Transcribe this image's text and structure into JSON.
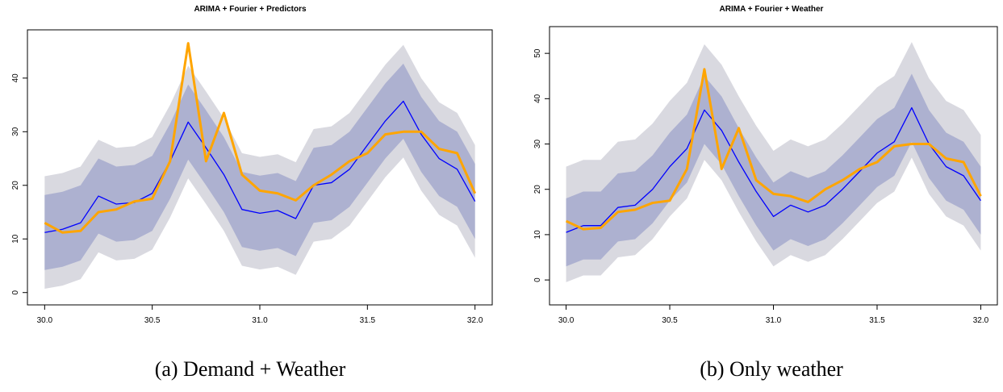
{
  "chart_data": [
    {
      "type": "line",
      "title": "ARIMA + Fourier + Predictors",
      "caption": "(a) Demand + Weather",
      "x": [
        30,
        30.083,
        30.167,
        30.25,
        30.333,
        30.417,
        30.5,
        30.583,
        30.667,
        30.75,
        30.833,
        30.917,
        31,
        31.083,
        31.167,
        31.25,
        31.333,
        31.417,
        31.5,
        31.583,
        31.667,
        31.75,
        31.833,
        31.917,
        32
      ],
      "xlim": [
        29.92,
        32.08
      ],
      "xticks": [
        {
          "value": 30,
          "label": "30.0"
        },
        30.5,
        {
          "value": 31,
          "label": "31.0"
        },
        31.5,
        {
          "value": 32,
          "label": "32.0"
        }
      ],
      "ylim": [
        -2.3,
        49
      ],
      "yticks": [
        0,
        10,
        20,
        30,
        40
      ],
      "bands": [
        {
          "color": "#d9d9e0",
          "lower": [
            0.7,
            1.3,
            2.5,
            7.5,
            6,
            6.3,
            8,
            14,
            21.3,
            16.5,
            11.5,
            5,
            4.3,
            4.8,
            3.3,
            9.5,
            10,
            12.5,
            17,
            21.5,
            25.2,
            19,
            14.5,
            12.5,
            6.5
          ],
          "upper": [
            21.7,
            22.3,
            23.5,
            28.5,
            27,
            27.3,
            29,
            35,
            42.3,
            37.5,
            32.5,
            26,
            25.3,
            25.8,
            24.3,
            30.5,
            31,
            33.5,
            38,
            42.5,
            46.2,
            40,
            35.5,
            33.5,
            27.5
          ]
        },
        {
          "color": "#adb1d0",
          "lower": [
            4.2,
            4.8,
            6,
            11,
            9.5,
            9.8,
            11.5,
            17.5,
            24.8,
            20,
            15,
            8.5,
            7.8,
            8.3,
            6.8,
            13,
            13.5,
            16,
            20.5,
            25,
            28.7,
            22.5,
            18,
            16,
            10
          ],
          "upper": [
            18.2,
            18.8,
            20,
            25,
            23.5,
            23.8,
            25.5,
            31.5,
            38.8,
            34,
            29,
            22.5,
            21.8,
            22.3,
            20.8,
            27,
            27.5,
            30,
            34.5,
            39,
            42.7,
            36.5,
            32,
            30,
            24
          ]
        }
      ],
      "forecast": {
        "color": "#0000ff",
        "values": [
          11.2,
          11.8,
          13,
          18,
          16.5,
          16.8,
          18.5,
          24.5,
          31.8,
          27,
          22,
          15.5,
          14.8,
          15.3,
          13.8,
          20,
          20.5,
          23,
          27.5,
          32,
          35.7,
          29.5,
          25,
          23,
          17
        ]
      },
      "actual": {
        "color": "#ffa500",
        "values": [
          13,
          11.2,
          11.5,
          15,
          15.5,
          17,
          17.5,
          24.5,
          46.5,
          24.5,
          33.5,
          22,
          19,
          18.5,
          17.2,
          20,
          22,
          24.5,
          26,
          29.5,
          30,
          30,
          26.8,
          26,
          18.5
        ]
      }
    },
    {
      "type": "line",
      "title": "ARIMA + Fourier + Weather",
      "caption": "(b) Only weather",
      "x": [
        30,
        30.083,
        30.167,
        30.25,
        30.333,
        30.417,
        30.5,
        30.583,
        30.667,
        30.75,
        30.833,
        30.917,
        31,
        31.083,
        31.167,
        31.25,
        31.333,
        31.417,
        31.5,
        31.583,
        31.667,
        31.75,
        31.833,
        31.917,
        32
      ],
      "xlim": [
        29.92,
        32.08
      ],
      "xticks": [
        {
          "value": 30,
          "label": "30.0"
        },
        30.5,
        {
          "value": 31,
          "label": "31.0"
        },
        31.5,
        {
          "value": 32,
          "label": "32.0"
        }
      ],
      "ylim": [
        -5.5,
        55.9
      ],
      "yticks": [
        0,
        10,
        20,
        30,
        40,
        50
      ],
      "bands": [
        {
          "color": "#d9d9e0",
          "lower": [
            -0.5,
            1,
            1,
            5,
            5.5,
            9,
            14,
            18,
            26.5,
            22,
            15,
            8.5,
            3,
            5.5,
            4,
            5.5,
            9,
            13,
            17,
            19.5,
            27,
            19,
            14,
            12,
            6.5
          ],
          "upper": [
            25,
            26.5,
            26.5,
            30.5,
            31,
            34.5,
            39.5,
            43.5,
            52,
            47.5,
            40.5,
            34,
            28.5,
            31,
            29.5,
            31,
            34.5,
            38.5,
            42.5,
            45,
            52.5,
            44.5,
            39.5,
            37.5,
            32
          ]
        },
        {
          "color": "#adb1d0",
          "lower": [
            3,
            4.5,
            4.5,
            8.5,
            9,
            12.5,
            17.5,
            21.5,
            30,
            25.5,
            18.5,
            12,
            6.5,
            9,
            7.5,
            9,
            12.5,
            16.5,
            20.5,
            23,
            30.5,
            22.5,
            17.5,
            15.5,
            10
          ],
          "upper": [
            18,
            19.5,
            19.5,
            23.5,
            24,
            27.5,
            32.5,
            36.5,
            45,
            40.5,
            33.5,
            27,
            21.5,
            24,
            22.5,
            24,
            27.5,
            31.5,
            35.5,
            38,
            45.5,
            37.5,
            32.5,
            30.5,
            25
          ]
        }
      ],
      "forecast": {
        "color": "#0000ff",
        "values": [
          10.5,
          12,
          12,
          16,
          16.5,
          20,
          25,
          29,
          37.5,
          33,
          26,
          19.5,
          14,
          16.5,
          15,
          16.5,
          20,
          24,
          28,
          30.5,
          38,
          30,
          25,
          23,
          17.5
        ]
      },
      "actual": {
        "color": "#ffa500",
        "values": [
          13,
          11.2,
          11.5,
          15,
          15.5,
          17,
          17.5,
          24.5,
          46.5,
          24.5,
          33.5,
          22,
          19,
          18.5,
          17.2,
          20,
          22,
          24.5,
          26,
          29.5,
          30,
          30,
          26.8,
          26,
          18.5
        ]
      }
    }
  ]
}
